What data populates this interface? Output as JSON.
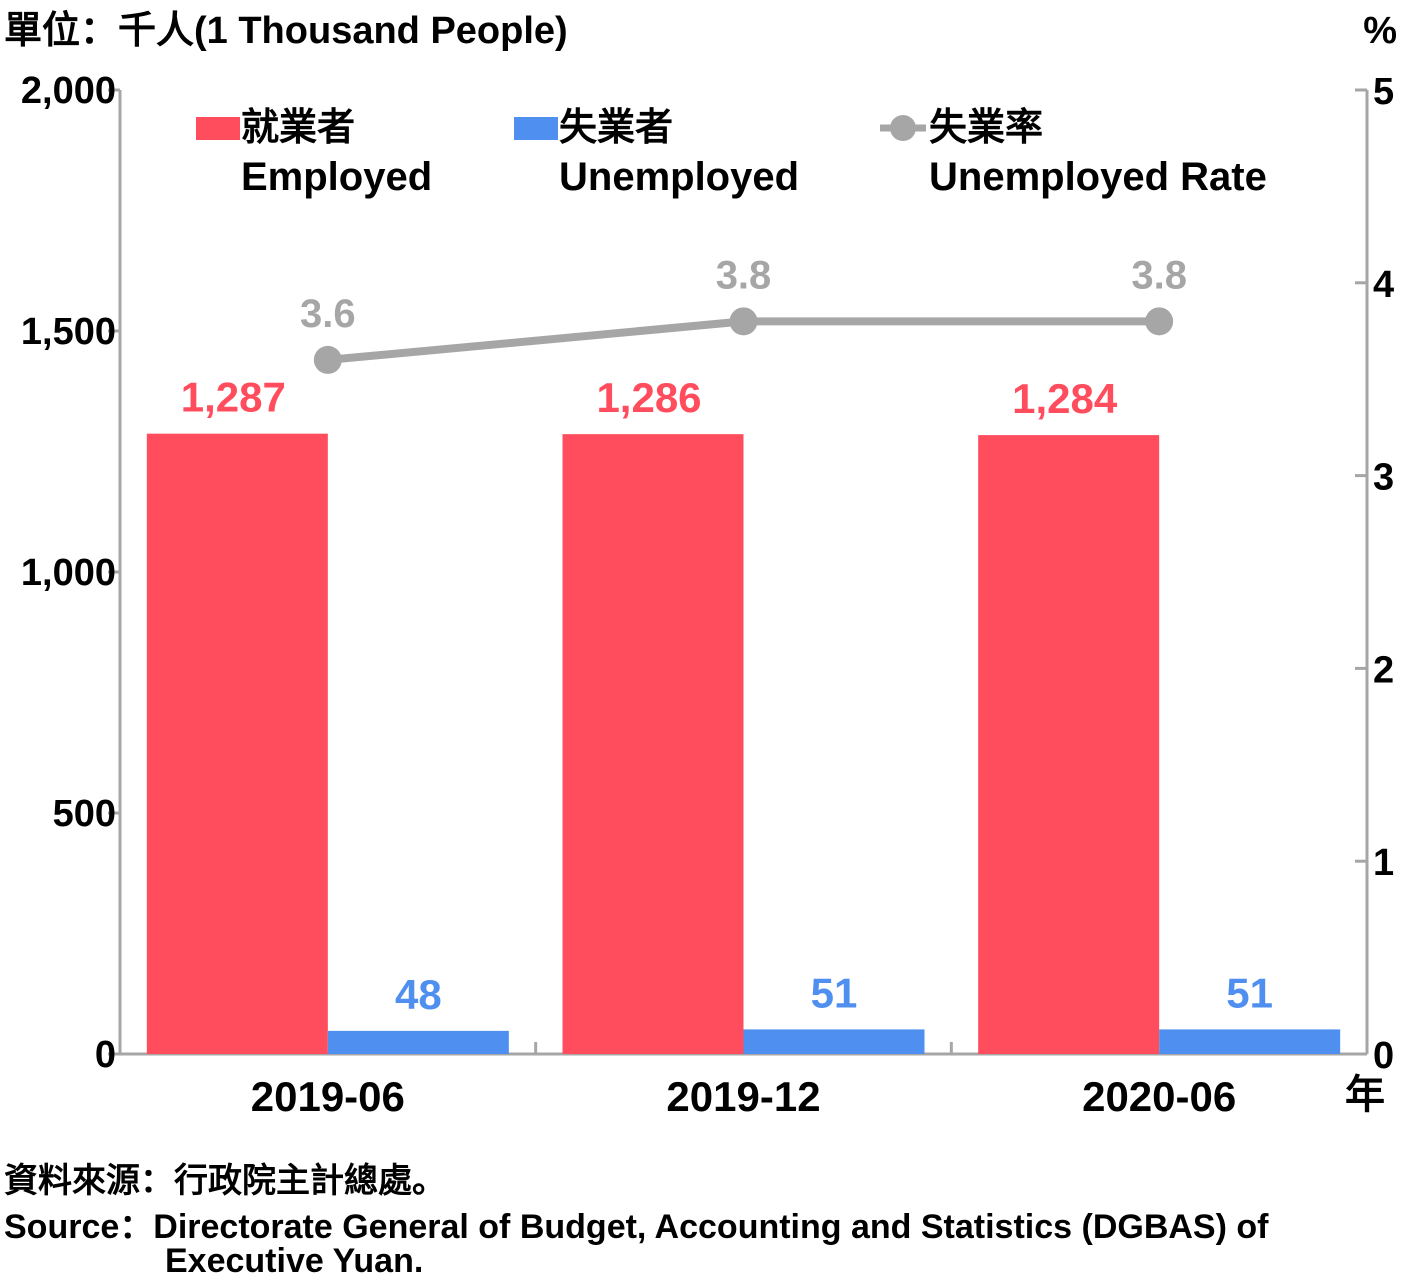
{
  "chart_data": {
    "type": "bar",
    "unit_label": "單位：千人(1 Thousand People)",
    "right_unit_label": "%",
    "x_unit_label": "年",
    "categories": [
      "2019-06",
      "2019-12",
      "2020-06"
    ],
    "series": [
      {
        "name_zh": "就業者",
        "name": "Employed",
        "type": "bar",
        "axis": "left",
        "color": "#ff4d5e",
        "values": [
          1287,
          1286,
          1284
        ],
        "labels": [
          "1,287",
          "1,286",
          "1,284"
        ]
      },
      {
        "name_zh": "失業者",
        "name": "Unemployed",
        "type": "bar",
        "axis": "left",
        "color": "#4f8ff0",
        "values": [
          48,
          51,
          51
        ],
        "labels": [
          "48",
          "51",
          "51"
        ]
      },
      {
        "name_zh": "失業率",
        "name": "Unemployed Rate",
        "type": "line",
        "axis": "right",
        "color": "#a6a6a6",
        "values": [
          3.6,
          3.8,
          3.8
        ],
        "labels": [
          "3.6",
          "3.8",
          "3.8"
        ]
      }
    ],
    "y_left": {
      "lim": [
        0,
        2000
      ],
      "ticks": [
        0,
        500,
        1000,
        1500,
        2000
      ],
      "tick_labels": [
        "0",
        "500",
        "1,000",
        "1,500",
        "2,000"
      ]
    },
    "y_right": {
      "lim": [
        0,
        5
      ],
      "ticks": [
        0,
        1,
        2,
        3,
        4,
        5
      ],
      "tick_labels": [
        "0",
        "1",
        "2",
        "3",
        "4",
        "5"
      ]
    },
    "grid": false,
    "legend_position": "top"
  },
  "source": {
    "zh": "資料來源：行政院主計總處。",
    "en_prefix": "Source：",
    "en_line1": "Directorate General of Budget, Accounting and Statistics (DGBAS) of",
    "en_line2": "Executive Yuan."
  }
}
